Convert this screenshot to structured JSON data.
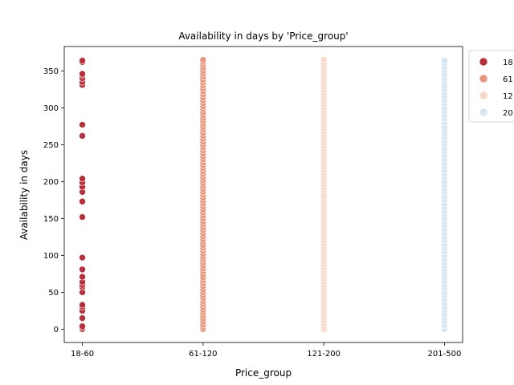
{
  "chart_data": {
    "type": "scatter",
    "title": "Availability in days by 'Price_group'",
    "xlabel": "Price_group",
    "ylabel": "Availability in days",
    "categories": [
      "18-60",
      "61-120",
      "121-200",
      "201-500"
    ],
    "ylim": [
      -18,
      383
    ],
    "yticks": [
      0,
      50,
      100,
      150,
      200,
      250,
      300,
      350
    ],
    "grid": false,
    "legend": {
      "placement": "outside-top-right",
      "entries": [
        "18",
        "61",
        "12",
        "20"
      ]
    },
    "colors": [
      "#b5303b",
      "#e8967b",
      "#f8d9c8",
      "#d6e6f2"
    ],
    "series": [
      {
        "name": "18-60",
        "x": "18-60",
        "values": [
          0,
          2,
          4,
          15,
          25,
          30,
          33,
          50,
          57,
          60,
          64,
          71,
          81,
          97,
          152,
          173,
          186,
          193,
          199,
          204,
          262,
          277,
          331,
          335,
          340,
          344,
          346,
          362,
          364
        ]
      },
      {
        "name": "61-120",
        "x": "61-120",
        "values": [
          0,
          3,
          6,
          10,
          14,
          18,
          22,
          26,
          30,
          34,
          38,
          42,
          46,
          50,
          54,
          58,
          62,
          66,
          70,
          74,
          78,
          82,
          86,
          90,
          94,
          98,
          102,
          106,
          110,
          114,
          118,
          122,
          126,
          130,
          134,
          138,
          142,
          146,
          150,
          154,
          158,
          162,
          166,
          170,
          174,
          178,
          182,
          186,
          190,
          194,
          198,
          202,
          206,
          210,
          214,
          218,
          222,
          226,
          230,
          234,
          238,
          242,
          246,
          250,
          254,
          258,
          262,
          266,
          270,
          274,
          278,
          282,
          286,
          290,
          294,
          298,
          302,
          306,
          310,
          314,
          318,
          322,
          326,
          330,
          334,
          338,
          342,
          346,
          350,
          354,
          358,
          362,
          365
        ]
      },
      {
        "name": "121-200",
        "x": "121-200",
        "values": [
          0,
          4,
          8,
          12,
          16,
          20,
          24,
          28,
          32,
          36,
          40,
          44,
          48,
          52,
          56,
          60,
          64,
          68,
          72,
          76,
          80,
          84,
          88,
          92,
          96,
          100,
          104,
          108,
          112,
          116,
          120,
          124,
          128,
          132,
          136,
          140,
          144,
          148,
          152,
          156,
          160,
          164,
          168,
          172,
          176,
          180,
          184,
          188,
          192,
          196,
          200,
          204,
          208,
          212,
          216,
          220,
          224,
          228,
          232,
          236,
          240,
          244,
          248,
          252,
          256,
          260,
          264,
          268,
          272,
          276,
          280,
          284,
          288,
          292,
          296,
          300,
          304,
          308,
          312,
          316,
          320,
          324,
          328,
          332,
          336,
          340,
          344,
          348,
          352,
          356,
          360,
          365
        ]
      },
      {
        "name": "201-500",
        "x": "201-500",
        "values": [
          0,
          5,
          10,
          15,
          20,
          25,
          30,
          35,
          40,
          45,
          50,
          55,
          60,
          65,
          70,
          75,
          80,
          85,
          90,
          95,
          100,
          105,
          110,
          115,
          120,
          125,
          130,
          135,
          140,
          145,
          150,
          155,
          160,
          165,
          170,
          175,
          180,
          185,
          190,
          195,
          200,
          205,
          210,
          215,
          220,
          225,
          230,
          235,
          240,
          245,
          250,
          255,
          260,
          265,
          270,
          275,
          280,
          285,
          290,
          295,
          300,
          305,
          310,
          315,
          320,
          325,
          330,
          335,
          340,
          345,
          350,
          355,
          360,
          364
        ]
      }
    ]
  }
}
